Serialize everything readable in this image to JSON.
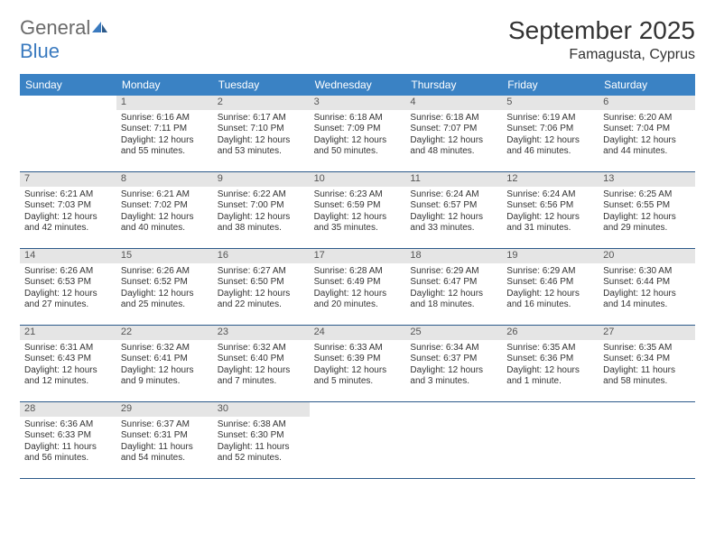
{
  "logo": {
    "text1": "General",
    "text2": "Blue"
  },
  "title": "September 2025",
  "location": "Famagusta, Cyprus",
  "colors": {
    "header_bg": "#3a82c4",
    "daynum_bg": "#e5e5e5",
    "row_border": "#2c5a8a",
    "logo_gray": "#6a6a6a",
    "logo_blue": "#3a7abf"
  },
  "days_of_week": [
    "Sunday",
    "Monday",
    "Tuesday",
    "Wednesday",
    "Thursday",
    "Friday",
    "Saturday"
  ],
  "grid": {
    "first_weekday_index": 1,
    "num_days": 30
  },
  "days": {
    "1": {
      "sunrise": "6:16 AM",
      "sunset": "7:11 PM",
      "daylight": "12 hours and 55 minutes."
    },
    "2": {
      "sunrise": "6:17 AM",
      "sunset": "7:10 PM",
      "daylight": "12 hours and 53 minutes."
    },
    "3": {
      "sunrise": "6:18 AM",
      "sunset": "7:09 PM",
      "daylight": "12 hours and 50 minutes."
    },
    "4": {
      "sunrise": "6:18 AM",
      "sunset": "7:07 PM",
      "daylight": "12 hours and 48 minutes."
    },
    "5": {
      "sunrise": "6:19 AM",
      "sunset": "7:06 PM",
      "daylight": "12 hours and 46 minutes."
    },
    "6": {
      "sunrise": "6:20 AM",
      "sunset": "7:04 PM",
      "daylight": "12 hours and 44 minutes."
    },
    "7": {
      "sunrise": "6:21 AM",
      "sunset": "7:03 PM",
      "daylight": "12 hours and 42 minutes."
    },
    "8": {
      "sunrise": "6:21 AM",
      "sunset": "7:02 PM",
      "daylight": "12 hours and 40 minutes."
    },
    "9": {
      "sunrise": "6:22 AM",
      "sunset": "7:00 PM",
      "daylight": "12 hours and 38 minutes."
    },
    "10": {
      "sunrise": "6:23 AM",
      "sunset": "6:59 PM",
      "daylight": "12 hours and 35 minutes."
    },
    "11": {
      "sunrise": "6:24 AM",
      "sunset": "6:57 PM",
      "daylight": "12 hours and 33 minutes."
    },
    "12": {
      "sunrise": "6:24 AM",
      "sunset": "6:56 PM",
      "daylight": "12 hours and 31 minutes."
    },
    "13": {
      "sunrise": "6:25 AM",
      "sunset": "6:55 PM",
      "daylight": "12 hours and 29 minutes."
    },
    "14": {
      "sunrise": "6:26 AM",
      "sunset": "6:53 PM",
      "daylight": "12 hours and 27 minutes."
    },
    "15": {
      "sunrise": "6:26 AM",
      "sunset": "6:52 PM",
      "daylight": "12 hours and 25 minutes."
    },
    "16": {
      "sunrise": "6:27 AM",
      "sunset": "6:50 PM",
      "daylight": "12 hours and 22 minutes."
    },
    "17": {
      "sunrise": "6:28 AM",
      "sunset": "6:49 PM",
      "daylight": "12 hours and 20 minutes."
    },
    "18": {
      "sunrise": "6:29 AM",
      "sunset": "6:47 PM",
      "daylight": "12 hours and 18 minutes."
    },
    "19": {
      "sunrise": "6:29 AM",
      "sunset": "6:46 PM",
      "daylight": "12 hours and 16 minutes."
    },
    "20": {
      "sunrise": "6:30 AM",
      "sunset": "6:44 PM",
      "daylight": "12 hours and 14 minutes."
    },
    "21": {
      "sunrise": "6:31 AM",
      "sunset": "6:43 PM",
      "daylight": "12 hours and 12 minutes."
    },
    "22": {
      "sunrise": "6:32 AM",
      "sunset": "6:41 PM",
      "daylight": "12 hours and 9 minutes."
    },
    "23": {
      "sunrise": "6:32 AM",
      "sunset": "6:40 PM",
      "daylight": "12 hours and 7 minutes."
    },
    "24": {
      "sunrise": "6:33 AM",
      "sunset": "6:39 PM",
      "daylight": "12 hours and 5 minutes."
    },
    "25": {
      "sunrise": "6:34 AM",
      "sunset": "6:37 PM",
      "daylight": "12 hours and 3 minutes."
    },
    "26": {
      "sunrise": "6:35 AM",
      "sunset": "6:36 PM",
      "daylight": "12 hours and 1 minute."
    },
    "27": {
      "sunrise": "6:35 AM",
      "sunset": "6:34 PM",
      "daylight": "11 hours and 58 minutes."
    },
    "28": {
      "sunrise": "6:36 AM",
      "sunset": "6:33 PM",
      "daylight": "11 hours and 56 minutes."
    },
    "29": {
      "sunrise": "6:37 AM",
      "sunset": "6:31 PM",
      "daylight": "11 hours and 54 minutes."
    },
    "30": {
      "sunrise": "6:38 AM",
      "sunset": "6:30 PM",
      "daylight": "11 hours and 52 minutes."
    }
  },
  "labels": {
    "sunrise": "Sunrise:",
    "sunset": "Sunset:",
    "daylight": "Daylight:"
  }
}
